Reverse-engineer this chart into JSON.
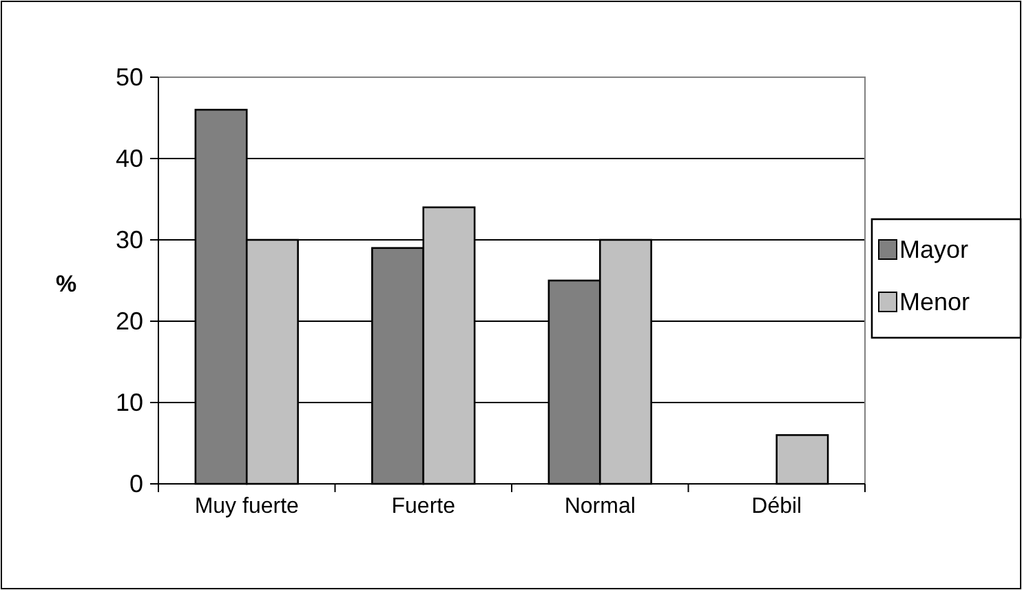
{
  "chart_data": {
    "type": "bar",
    "ylabel": "%",
    "categories": [
      "Muy fuerte",
      "Fuerte",
      "Normal",
      "Débil"
    ],
    "series": [
      {
        "name": "Mayor",
        "color": "#808080",
        "values": [
          46,
          29,
          25,
          0
        ]
      },
      {
        "name": "Menor",
        "color": "#c0c0c0",
        "values": [
          30,
          34,
          30,
          6
        ]
      }
    ],
    "ylim": [
      0,
      50
    ],
    "yticks": [
      0,
      10,
      20,
      30,
      40,
      50
    ],
    "grid": "y",
    "legend": "right"
  }
}
